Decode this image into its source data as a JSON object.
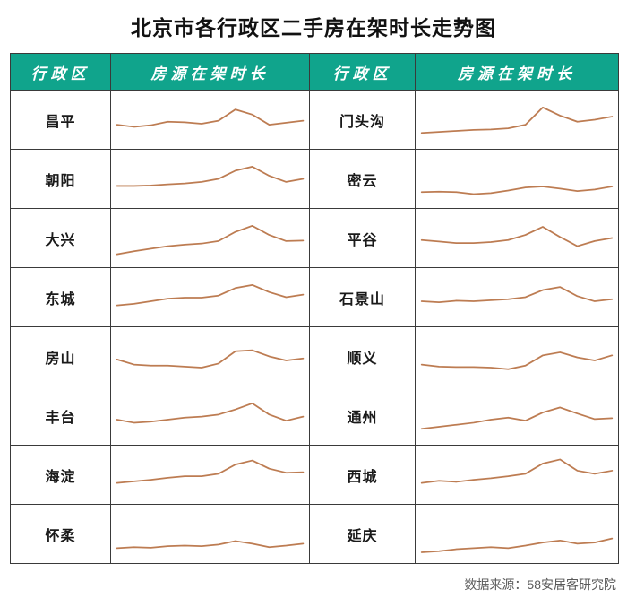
{
  "title": "北京市各行政区二手房在架时长走势图",
  "table": {
    "headers": [
      "行政区",
      "房源在架时长",
      "行政区",
      "房源在架时长"
    ]
  },
  "rows": [
    {
      "left": "昌平",
      "right": "门头沟"
    },
    {
      "left": "朝阳",
      "right": "密云"
    },
    {
      "left": "大兴",
      "right": "平谷"
    },
    {
      "left": "东城",
      "right": "石景山"
    },
    {
      "left": "房山",
      "right": "顺义"
    },
    {
      "left": "丰台",
      "right": "通州"
    },
    {
      "left": "海淀",
      "right": "西城"
    },
    {
      "left": "怀柔",
      "right": "延庆"
    }
  ],
  "footer": {
    "source": "数据来源：58安居客研究院"
  },
  "colors": {
    "header_bg": "#10a48c",
    "header_text": "#ffffff",
    "border": "#3a3a3a",
    "sparkline": "#bd7c52",
    "footer_text": "#595959",
    "title_text": "#111111"
  },
  "chart_data": {
    "type": "line",
    "title": "北京市各行政区二手房在架时长走势图",
    "xlabel": "",
    "ylabel": "房源在架时长",
    "legend": "none",
    "axes_visible": false,
    "note": "16 unlabeled sparklines (one per district); values estimated on a relative 0-100 scale from line positions",
    "series": [
      {
        "name": "昌平",
        "values": [
          40,
          36,
          39,
          46,
          45,
          42,
          48,
          70,
          60,
          40,
          44,
          48
        ]
      },
      {
        "name": "朝阳",
        "values": [
          36,
          36,
          37,
          39,
          41,
          44,
          50,
          66,
          74,
          56,
          44,
          50
        ]
      },
      {
        "name": "大兴",
        "values": [
          18,
          24,
          29,
          34,
          37,
          39,
          44,
          62,
          74,
          56,
          44,
          45
        ]
      },
      {
        "name": "东城",
        "values": [
          34,
          37,
          42,
          47,
          49,
          49,
          53,
          68,
          74,
          60,
          50,
          55
        ]
      },
      {
        "name": "房山",
        "values": [
          44,
          34,
          32,
          32,
          30,
          28,
          36,
          60,
          62,
          50,
          42,
          46
        ]
      },
      {
        "name": "丰台",
        "values": [
          42,
          36,
          38,
          42,
          46,
          48,
          52,
          62,
          74,
          52,
          40,
          48
        ]
      },
      {
        "name": "海淀",
        "values": [
          34,
          37,
          40,
          44,
          47,
          47,
          52,
          70,
          78,
          62,
          54,
          55
        ]
      },
      {
        "name": "怀柔",
        "values": [
          22,
          24,
          23,
          26,
          27,
          26,
          29,
          36,
          31,
          24,
          27,
          31
        ]
      },
      {
        "name": "门头沟",
        "values": [
          24,
          26,
          28,
          30,
          31,
          33,
          40,
          74,
          58,
          46,
          50,
          56
        ]
      },
      {
        "name": "密云",
        "values": [
          24,
          25,
          24,
          20,
          22,
          27,
          33,
          35,
          31,
          26,
          29,
          35
        ]
      },
      {
        "name": "平谷",
        "values": [
          46,
          43,
          40,
          40,
          42,
          46,
          56,
          72,
          52,
          34,
          44,
          50
        ]
      },
      {
        "name": "石景山",
        "values": [
          42,
          40,
          43,
          42,
          44,
          46,
          50,
          64,
          70,
          52,
          42,
          46
        ]
      },
      {
        "name": "顺义",
        "values": [
          34,
          30,
          29,
          29,
          28,
          25,
          32,
          52,
          58,
          48,
          42,
          52
        ]
      },
      {
        "name": "通州",
        "values": [
          24,
          28,
          32,
          36,
          42,
          46,
          40,
          56,
          66,
          54,
          43,
          45
        ]
      },
      {
        "name": "西城",
        "values": [
          34,
          38,
          36,
          40,
          43,
          47,
          52,
          72,
          80,
          58,
          52,
          58
        ]
      },
      {
        "name": "延庆",
        "values": [
          14,
          16,
          20,
          22,
          24,
          22,
          27,
          33,
          37,
          31,
          33,
          41
        ]
      }
    ]
  }
}
